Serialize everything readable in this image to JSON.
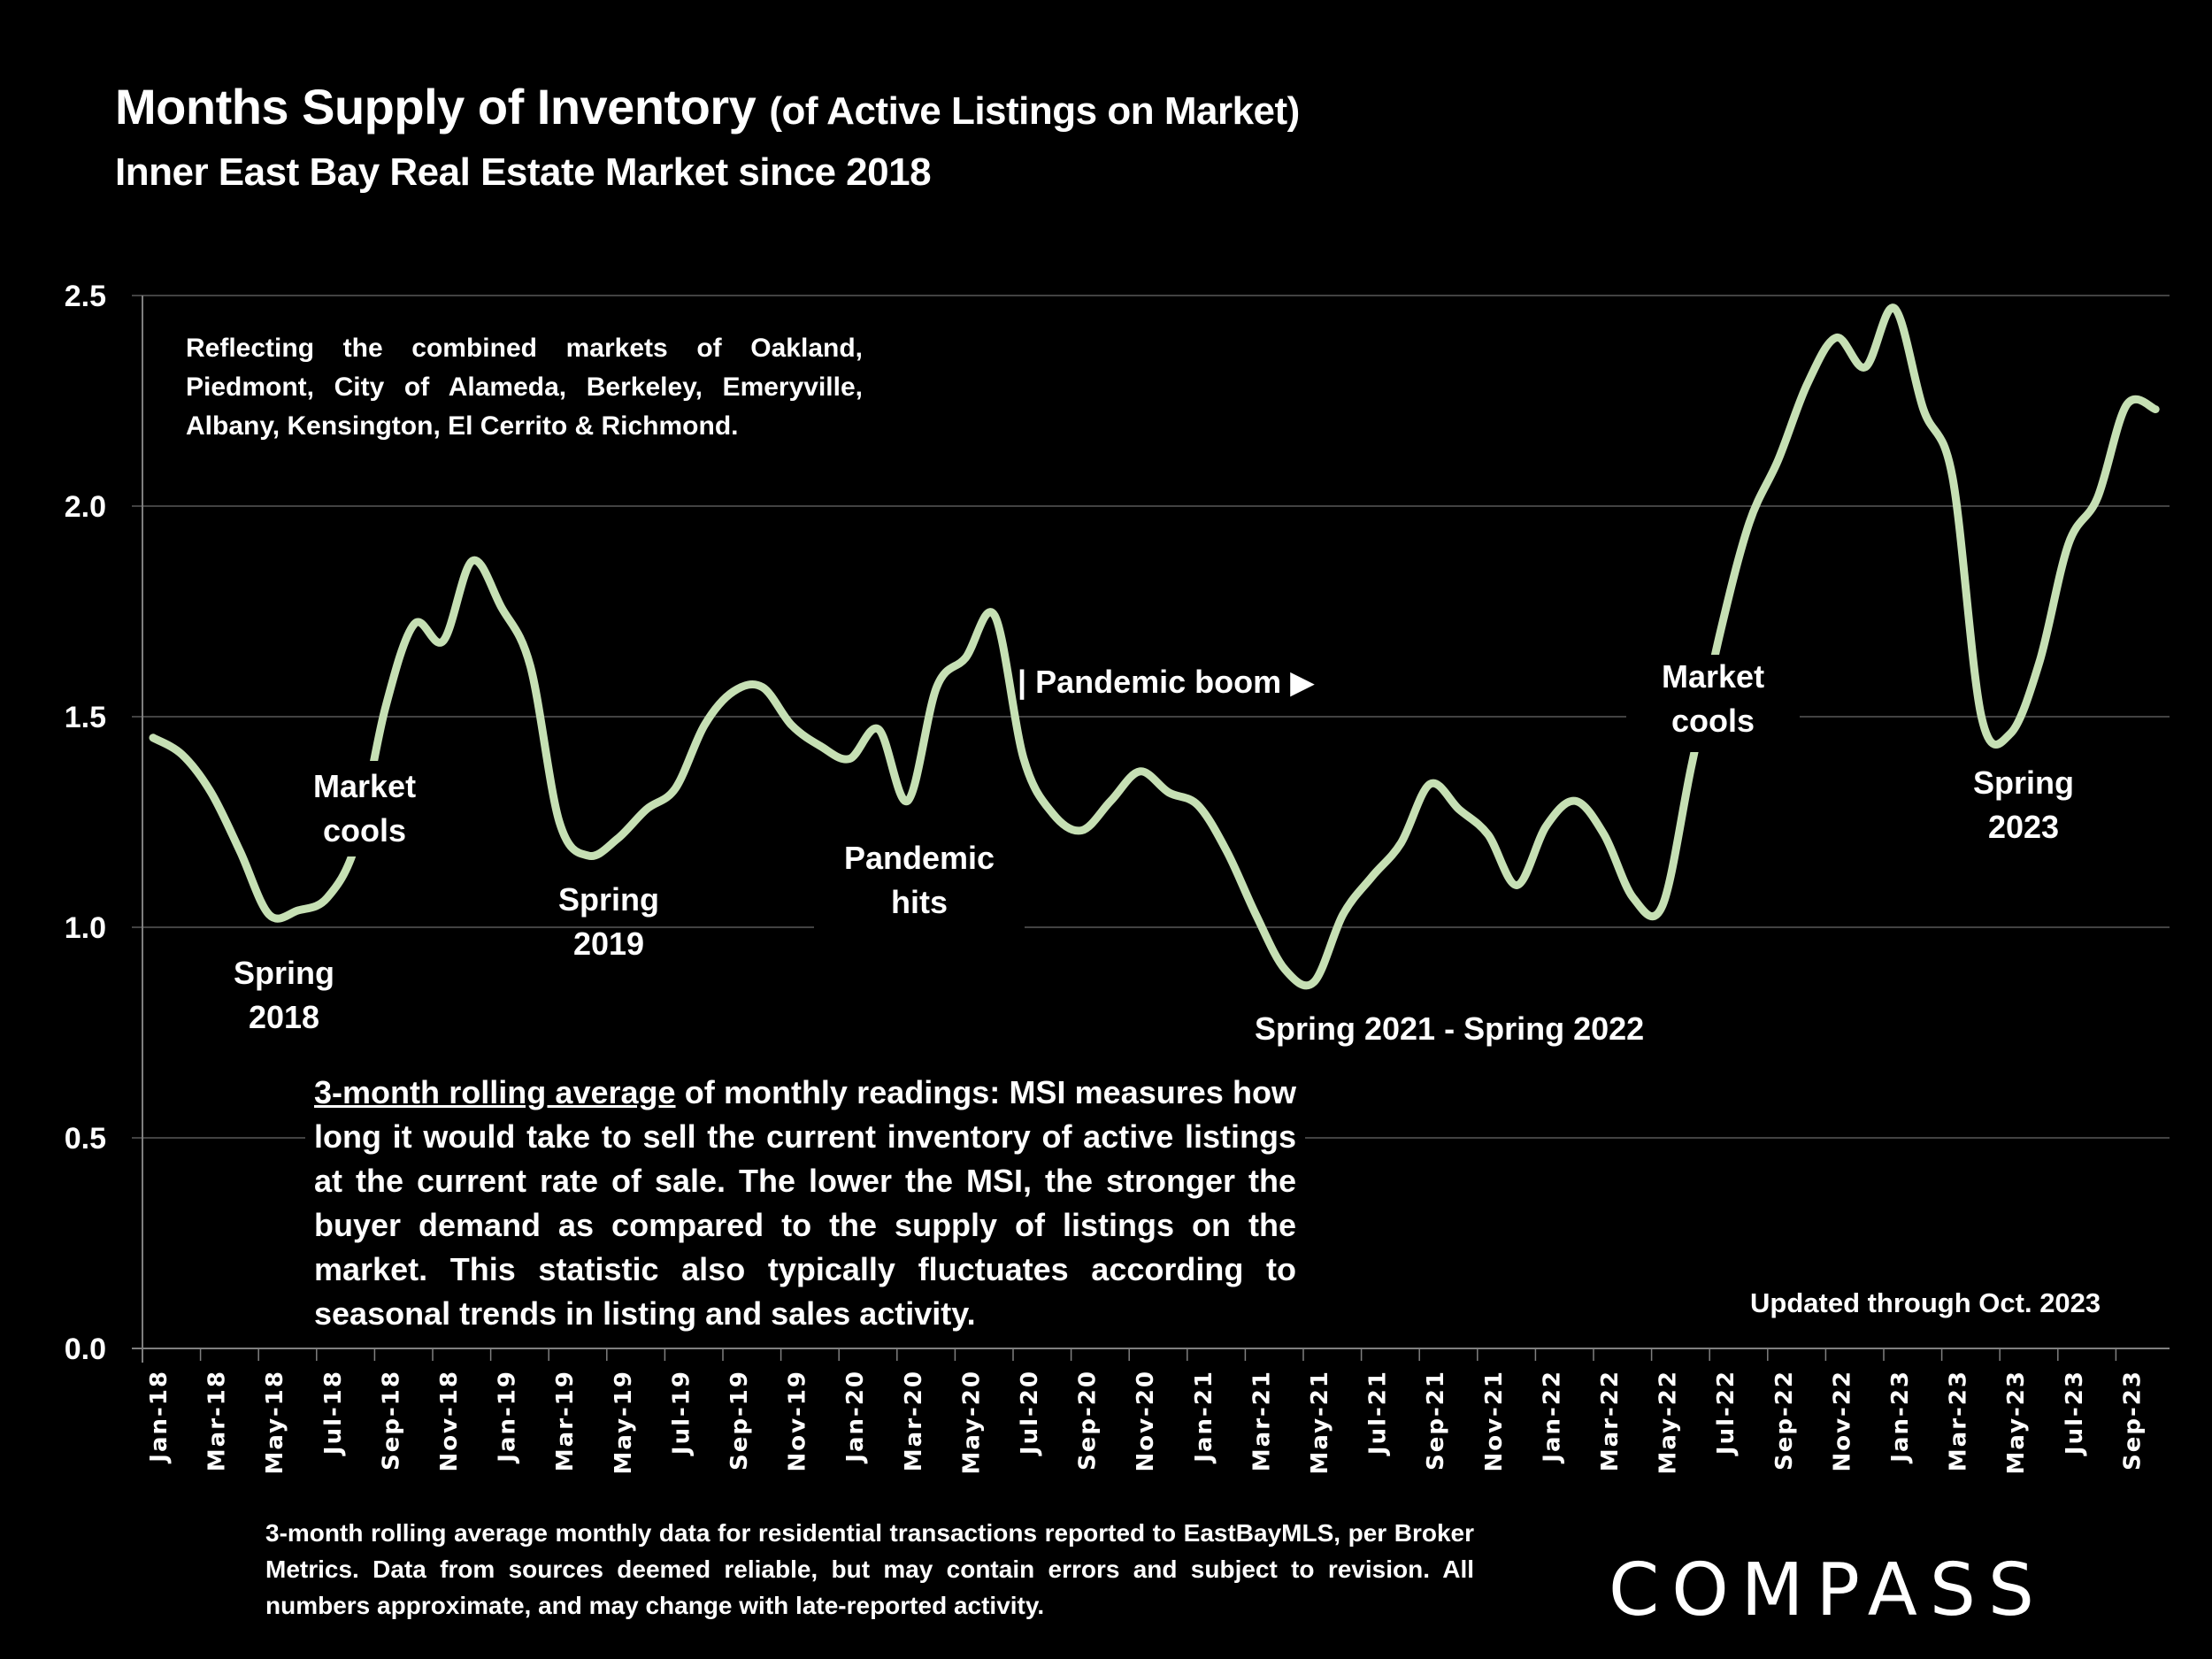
{
  "header": {
    "title_main": "Months Supply of Inventory",
    "title_paren": "(of Active Listings on Market)",
    "subtitle": "Inner East Bay Real Estate Market since 2018"
  },
  "note": "Reflecting the combined markets of Oakland, Piedmont, City of Alameda, Berkeley, Emeryville, Albany, Kensington, El Cerrito & Richmond.",
  "annotations": {
    "spring_2018": [
      "Spring",
      "2018"
    ],
    "market_cools_2018": [
      "Market",
      "cools"
    ],
    "spring_2019": [
      "Spring",
      "2019"
    ],
    "pandemic_hits": [
      "Pandemic",
      "hits"
    ],
    "pandemic_boom": "| Pandemic boom ▶",
    "spring_2021_2022": "Spring 2021 - Spring 2022",
    "market_cools_2022": [
      "Market",
      "cools"
    ],
    "spring_2023": [
      "Spring",
      "2023"
    ]
  },
  "description": {
    "underlined": "3-month rolling average",
    "rest": " of monthly readings: MSI measures how long it would take to sell the current inventory of active listings at the current rate of sale. The lower the MSI, the stronger the buyer demand as compared to the supply of listings on the market. This statistic also typically fluctuates according to seasonal trends in listing and sales activity."
  },
  "updated": "Updated through Oct. 2023",
  "footer": "3-month rolling average monthly data for residential transactions reported to EastBayMLS, per Broker Metrics. Data from sources deemed reliable, but may contain errors and subject to revision. All numbers approximate, and may change with late-reported activity.",
  "logo": "COMPASS",
  "colors": {
    "background": "#000000",
    "line": "#c6e0b4",
    "grid": "#595959",
    "text": "#ffffff"
  },
  "chart_data": {
    "type": "line",
    "title": "Months Supply of Inventory (of Active Listings on Market)",
    "subtitle": "Inner East Bay Real Estate Market since 2018",
    "xlabel": "",
    "ylabel": "",
    "ylim": [
      0,
      2.5
    ],
    "yticks": [
      "0.0",
      "0.5",
      "1.0",
      "1.5",
      "2.0",
      "2.5"
    ],
    "grid": true,
    "legend": "none",
    "xtick_labels": [
      "Jan-18",
      "Mar-18",
      "May-18",
      "Jul-18",
      "Sep-18",
      "Nov-18",
      "Jan-19",
      "Mar-19",
      "May-19",
      "Jul-19",
      "Sep-19",
      "Nov-19",
      "Jan-20",
      "Mar-20",
      "May-20",
      "Jul-20",
      "Sep-20",
      "Nov-20",
      "Jan-21",
      "Mar-21",
      "May-21",
      "Jul-21",
      "Sep-21",
      "Nov-21",
      "Jan-22",
      "Mar-22",
      "May-22",
      "Jul-22",
      "Sep-22",
      "Nov-22",
      "Jan-23",
      "Mar-23",
      "May-23",
      "Jul-23",
      "Sep-23"
    ],
    "x": [
      "Jan-18",
      "Feb-18",
      "Mar-18",
      "Apr-18",
      "May-18",
      "Jun-18",
      "Jul-18",
      "Aug-18",
      "Sep-18",
      "Oct-18",
      "Nov-18",
      "Dec-18",
      "Jan-19",
      "Feb-19",
      "Mar-19",
      "Apr-19",
      "May-19",
      "Jun-19",
      "Jul-19",
      "Aug-19",
      "Sep-19",
      "Oct-19",
      "Nov-19",
      "Dec-19",
      "Jan-20",
      "Feb-20",
      "Mar-20",
      "Apr-20",
      "May-20",
      "Jun-20",
      "Jul-20",
      "Aug-20",
      "Sep-20",
      "Oct-20",
      "Nov-20",
      "Dec-20",
      "Jan-21",
      "Feb-21",
      "Mar-21",
      "Apr-21",
      "May-21",
      "Jun-21",
      "Jul-21",
      "Aug-21",
      "Sep-21",
      "Oct-21",
      "Nov-21",
      "Dec-21",
      "Jan-22",
      "Feb-22",
      "Mar-22",
      "Apr-22",
      "May-22",
      "Jun-22",
      "Jul-22",
      "Aug-22",
      "Sep-22",
      "Oct-22",
      "Nov-22",
      "Dec-22",
      "Jan-23",
      "Feb-23",
      "Mar-23",
      "Apr-23",
      "May-23",
      "Jun-23",
      "Jul-23",
      "Aug-23",
      "Sep-23",
      "Oct-23"
    ],
    "series": [
      {
        "name": "Months Supply of Inventory (3-month rolling average)",
        "values": [
          1.45,
          1.41,
          1.32,
          1.18,
          1.03,
          1.04,
          1.07,
          1.2,
          1.52,
          1.72,
          1.68,
          1.87,
          1.76,
          1.62,
          1.25,
          1.17,
          1.21,
          1.28,
          1.33,
          1.48,
          1.56,
          1.57,
          1.48,
          1.43,
          1.4,
          1.47,
          1.3,
          1.57,
          1.64,
          1.74,
          1.4,
          1.27,
          1.23,
          1.3,
          1.37,
          1.32,
          1.29,
          1.18,
          1.03,
          0.9,
          0.87,
          1.03,
          1.12,
          1.2,
          1.34,
          1.28,
          1.22,
          1.1,
          1.24,
          1.3,
          1.22,
          1.07,
          1.05,
          1.38,
          1.7,
          1.96,
          2.11,
          2.29,
          2.4,
          2.33,
          2.47,
          2.23,
          2.07,
          1.5,
          1.46,
          1.63,
          1.91,
          2.02,
          2.24,
          2.23
        ]
      }
    ]
  }
}
